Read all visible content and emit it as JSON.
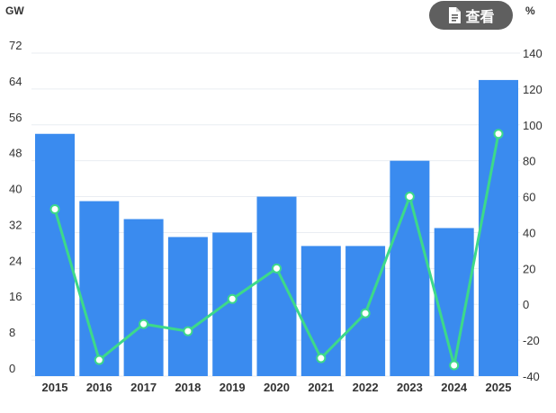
{
  "header": {
    "left_unit": "GW",
    "right_unit": "%",
    "view_button_label": "查看",
    "view_button_icon": "document-icon"
  },
  "colors": {
    "bar": "#3a8bef",
    "line": "#3dd98a",
    "grid": "#e9edf2",
    "axis_text": "#333333"
  },
  "chart_data": {
    "type": "bar",
    "categories": [
      "2015",
      "2016",
      "2017",
      "2018",
      "2019",
      "2020",
      "2021",
      "2022",
      "2023",
      "2024",
      "2025"
    ],
    "series": [
      {
        "values": [
          54,
          39,
          35,
          31,
          32,
          40,
          29,
          29,
          48,
          33,
          66
        ],
        "axis": "left",
        "type": "bar"
      },
      {
        "values": [
          53,
          -31,
          -11,
          -15,
          3,
          20,
          -30,
          -5,
          60,
          -34,
          95
        ],
        "axis": "right",
        "type": "line"
      }
    ],
    "y_left": {
      "unit": "GW",
      "ylim": [
        0,
        72
      ],
      "ticks": [
        0,
        8,
        16,
        24,
        32,
        40,
        48,
        56,
        64,
        72
      ]
    },
    "y_right": {
      "unit": "%",
      "ylim": [
        -40,
        140
      ],
      "ticks": [
        -40,
        -20,
        0,
        20,
        40,
        60,
        80,
        100,
        120,
        140
      ]
    },
    "grid": true,
    "legend": "none"
  }
}
